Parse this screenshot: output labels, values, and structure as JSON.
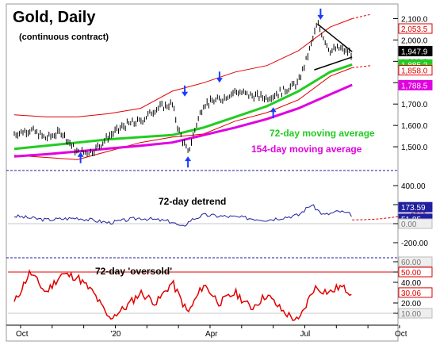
{
  "chart_data": [
    {
      "type": "line",
      "panel": "price",
      "title": "Gold, Daily",
      "subtitle": "(continuous contract)",
      "ylim": [
        1400,
        2150
      ],
      "yticks": [
        "2,100.0",
        "2,000.0",
        "1,900.0",
        "1,800.0",
        "1,700.0",
        "1,600.0",
        "1,500.0"
      ],
      "ytick_values": [
        2100,
        2000,
        1900,
        1800,
        1700,
        1600,
        1500
      ],
      "x_labels": [
        "Oct",
        "'20",
        "Apr",
        "Jul",
        "Oct"
      ],
      "x_label_months": [
        0,
        3,
        6,
        9,
        12
      ],
      "series": [
        {
          "name": "72-day moving average",
          "color": "#22cc22",
          "x": [
            0,
            1,
            2,
            3,
            4,
            5,
            6,
            7,
            8,
            9,
            10,
            10.7
          ],
          "values": [
            1490,
            1505,
            1520,
            1535,
            1545,
            1555,
            1590,
            1640,
            1690,
            1760,
            1850,
            1885
          ]
        },
        {
          "name": "154-day moving average",
          "color": "#e000e0",
          "x": [
            0,
            1,
            2,
            3,
            4,
            5,
            6,
            7,
            8,
            9,
            10,
            10.7
          ],
          "values": [
            1455,
            1465,
            1478,
            1492,
            1505,
            1520,
            1555,
            1590,
            1630,
            1680,
            1745,
            1790
          ]
        }
      ],
      "price_x": [
        0,
        0.5,
        1,
        1.5,
        2,
        2.5,
        3,
        3.5,
        4,
        4.5,
        5,
        5.2,
        5.5,
        5.8,
        6,
        6.5,
        7,
        7.5,
        8,
        8.5,
        9,
        9.3,
        9.6,
        10,
        10.3,
        10.7
      ],
      "price_y": [
        1560,
        1580,
        1540,
        1570,
        1470,
        1480,
        1550,
        1600,
        1620,
        1680,
        1700,
        1580,
        1470,
        1620,
        1700,
        1720,
        1760,
        1740,
        1730,
        1760,
        1800,
        1930,
        2075,
        1950,
        1960,
        1935
      ],
      "upper_band_x": [
        0,
        1,
        2,
        3,
        4,
        5,
        6,
        7,
        8,
        9,
        10,
        10.7
      ],
      "upper_band_y": [
        1650,
        1640,
        1640,
        1655,
        1680,
        1760,
        1800,
        1850,
        1880,
        1950,
        2060,
        2100
      ],
      "lower_band_x": [
        0,
        1,
        2,
        3,
        4,
        5,
        6,
        7,
        8,
        9,
        10,
        10.7
      ],
      "lower_band_y": [
        1460,
        1450,
        1440,
        1480,
        1520,
        1545,
        1560,
        1620,
        1660,
        1720,
        1830,
        1870
      ],
      "badges": [
        {
          "text": "2,053.5",
          "value": 2053.5,
          "fill": "#ffffff",
          "stroke": "#e00000",
          "color": "#e00000"
        },
        {
          "text": "1,947.9",
          "value": 1947.9,
          "fill": "#000000",
          "stroke": "#000000",
          "color": "#ffffff"
        },
        {
          "text": "1,885.2",
          "value": 1885.2,
          "fill": "#22cc22",
          "stroke": "#22cc22",
          "color": "#ffffff"
        },
        {
          "text": "1,858.0",
          "value": 1858.0,
          "fill": "#ffffff",
          "stroke": "#e00000",
          "color": "#e00000"
        },
        {
          "text": "1,788.5",
          "value": 1788.5,
          "fill": "#e000e0",
          "stroke": "#e000e0",
          "color": "#ffffff"
        }
      ],
      "annotations": [
        "72-day moving average",
        "154-day moving average"
      ]
    },
    {
      "type": "line",
      "panel": "detrend",
      "title": "72-day detrend",
      "ylim": [
        -300,
        500
      ],
      "yticks": [
        "400.00",
        "200.00",
        "0.00",
        "-200.00"
      ],
      "ytick_values": [
        400,
        200,
        0,
        -200
      ],
      "series": [
        {
          "name": "72-day detrend",
          "color": "#2020a0",
          "x": [
            0,
            1,
            2,
            3,
            4,
            5,
            5.3,
            5.6,
            6,
            7,
            8,
            9,
            9.4,
            9.8,
            10.3,
            10.7
          ],
          "values": [
            80,
            40,
            60,
            10,
            60,
            20,
            -40,
            40,
            90,
            70,
            40,
            90,
            200,
            90,
            130,
            90
          ]
        }
      ],
      "badges": [
        {
          "text": "173.59",
          "value": 173.59,
          "fill": "#2020a0",
          "stroke": "#2020a0",
          "color": "#ffffff"
        },
        {
          "text": "51.85",
          "value": 51.85,
          "fill": "#2020a0",
          "stroke": "#2020a0",
          "color": "#ffffff"
        },
        {
          "text": "0.00",
          "value": 0,
          "fill": "#eeeeee",
          "stroke": "#bbbbbb",
          "color": "#777777"
        }
      ]
    },
    {
      "type": "line",
      "panel": "oversold",
      "title": "72-day 'oversold'",
      "ylim": [
        0,
        60
      ],
      "yticks": [
        "60.00",
        "50.00",
        "40.00",
        "20.00",
        "10.00"
      ],
      "ytick_values": [
        60,
        50,
        40,
        20,
        10
      ],
      "series": [
        {
          "name": "72-day 'oversold'",
          "color": "#e00000",
          "x": [
            0,
            0.5,
            1,
            1.5,
            2,
            2.5,
            3,
            3.5,
            4,
            4.5,
            5,
            5.5,
            6,
            6.5,
            7,
            7.5,
            8,
            8.5,
            9,
            9.5,
            10,
            10.3,
            10.7
          ],
          "values": [
            20,
            50,
            30,
            48,
            45,
            30,
            5,
            15,
            30,
            20,
            40,
            10,
            38,
            20,
            30,
            15,
            28,
            12,
            2,
            35,
            30,
            36,
            30
          ]
        }
      ],
      "badges": [
        {
          "text": "60.00",
          "value": 60,
          "fill": "#eeeeee",
          "stroke": "#bbbbbb",
          "color": "#777777"
        },
        {
          "text": "50.00",
          "value": 50,
          "fill": "#ffffff",
          "stroke": "#e00000",
          "color": "#e00000"
        },
        {
          "text": "30.06",
          "value": 30.06,
          "fill": "#ffffff",
          "stroke": "#e00000",
          "color": "#e00000"
        },
        {
          "text": "10.00",
          "value": 10,
          "fill": "#eeeeee",
          "stroke": "#bbbbbb",
          "color": "#777777"
        }
      ]
    }
  ]
}
